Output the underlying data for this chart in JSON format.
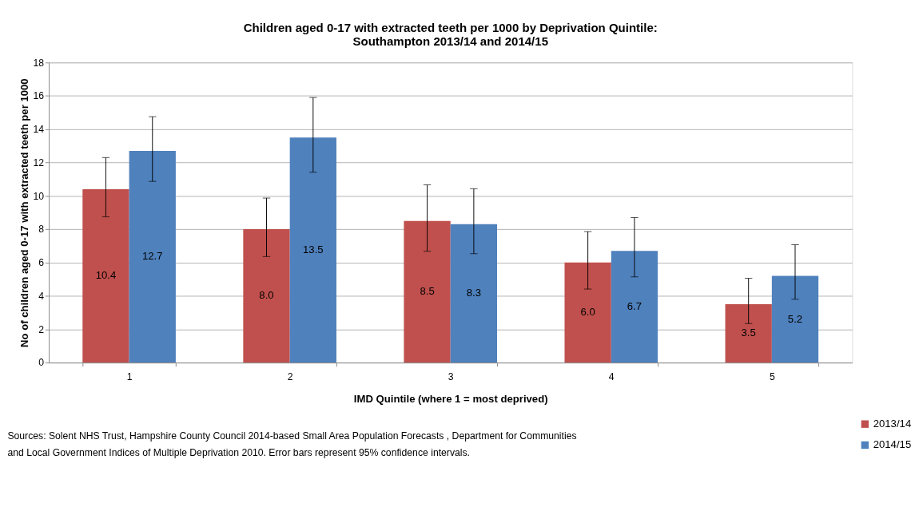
{
  "chart_data": {
    "type": "bar",
    "title": [
      "Children aged 0-17 with extracted teeth per 1000 by Deprivation Quintile:",
      "Southampton 2013/14 and 2014/15"
    ],
    "xlabel": "IMD Quintile (where 1 = most deprived)",
    "ylabel": "No of children aged 0-17 with extracted teeth per 1000",
    "categories": [
      "1",
      "2",
      "3",
      "4",
      "5"
    ],
    "series": [
      {
        "name": "2013/14",
        "color": "#c0504d",
        "values": [
          10.4,
          8.0,
          8.5,
          6.0,
          3.5
        ],
        "value_labels": [
          "10.4",
          "8.0",
          "8.5",
          "6.0",
          "3.5"
        ],
        "errors": [
          [
            8.74,
            12.3
          ],
          [
            6.36,
            9.87
          ],
          [
            6.68,
            10.66
          ],
          [
            4.41,
            7.86
          ],
          [
            2.34,
            5.06
          ]
        ]
      },
      {
        "name": "2014/15",
        "color": "#4f81bd",
        "values": [
          12.7,
          13.5,
          8.3,
          6.7,
          5.2
        ],
        "value_labels": [
          "12.7",
          "13.5",
          "8.3",
          "6.7",
          "5.2"
        ],
        "errors": [
          [
            10.87,
            14.75
          ],
          [
            11.42,
            15.9
          ],
          [
            6.53,
            10.43
          ],
          [
            5.14,
            8.7
          ],
          [
            3.8,
            7.07
          ]
        ]
      }
    ],
    "ylim": [
      0,
      18
    ],
    "yticks": [
      0,
      2,
      4,
      6,
      8,
      10,
      12,
      14,
      16,
      18
    ],
    "grid": "y",
    "legend": "bottom right",
    "annotations": [
      "Sources: Solent NHS Trust,  Hampshire County Council 2014-based Small Area Population Forecasts , Department for Communities",
      "and Local Government Indices of Multiple Deprivation 2010.  Error bars represent 95% confidence intervals."
    ]
  }
}
